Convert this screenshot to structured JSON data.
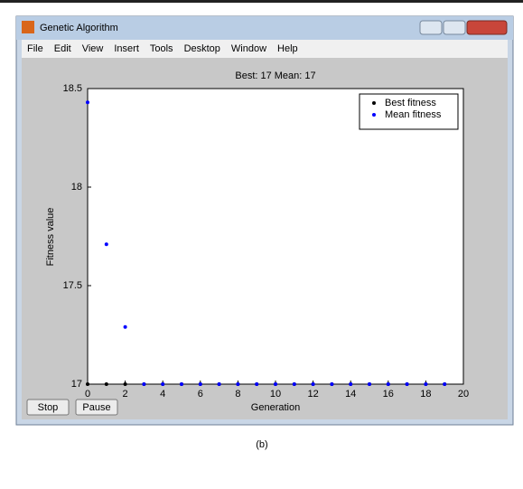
{
  "window": {
    "title": "Genetic Algorithm",
    "menu": [
      "File",
      "Edit",
      "View",
      "Insert",
      "Tools",
      "Desktop",
      "Window",
      "Help"
    ],
    "buttons": [
      "Stop",
      "Pause"
    ]
  },
  "chart_data": {
    "type": "scatter",
    "title": "Best: 17 Mean: 17",
    "x_label": "Generation",
    "y_label": "Fitness value",
    "x": [
      0,
      1,
      2,
      3,
      4,
      5,
      6,
      7,
      8,
      9,
      10,
      11,
      12,
      13,
      14,
      15,
      16,
      17,
      18,
      19
    ],
    "series": [
      {
        "name": "Best fitness",
        "color": "#000000",
        "values": [
          17,
          17,
          17,
          17,
          17,
          17,
          17,
          17,
          17,
          17,
          17,
          17,
          17,
          17,
          17,
          17,
          17,
          17,
          17,
          17
        ]
      },
      {
        "name": "Mean fitness",
        "color": "#0000ff",
        "values": [
          18.43,
          17.71,
          17.29,
          17,
          17,
          17,
          17,
          17,
          17,
          17,
          17,
          17,
          17,
          17,
          17,
          17,
          17,
          17,
          17,
          17
        ]
      }
    ],
    "xlim": [
      0,
      20
    ],
    "xticks": [
      0,
      2,
      4,
      6,
      8,
      10,
      12,
      14,
      16,
      18,
      20
    ],
    "ylim": [
      17,
      18.5
    ],
    "yticks": [
      17,
      17.5,
      18,
      18.5
    ],
    "grid": false,
    "legend": "top-right"
  },
  "caption": "(b)"
}
